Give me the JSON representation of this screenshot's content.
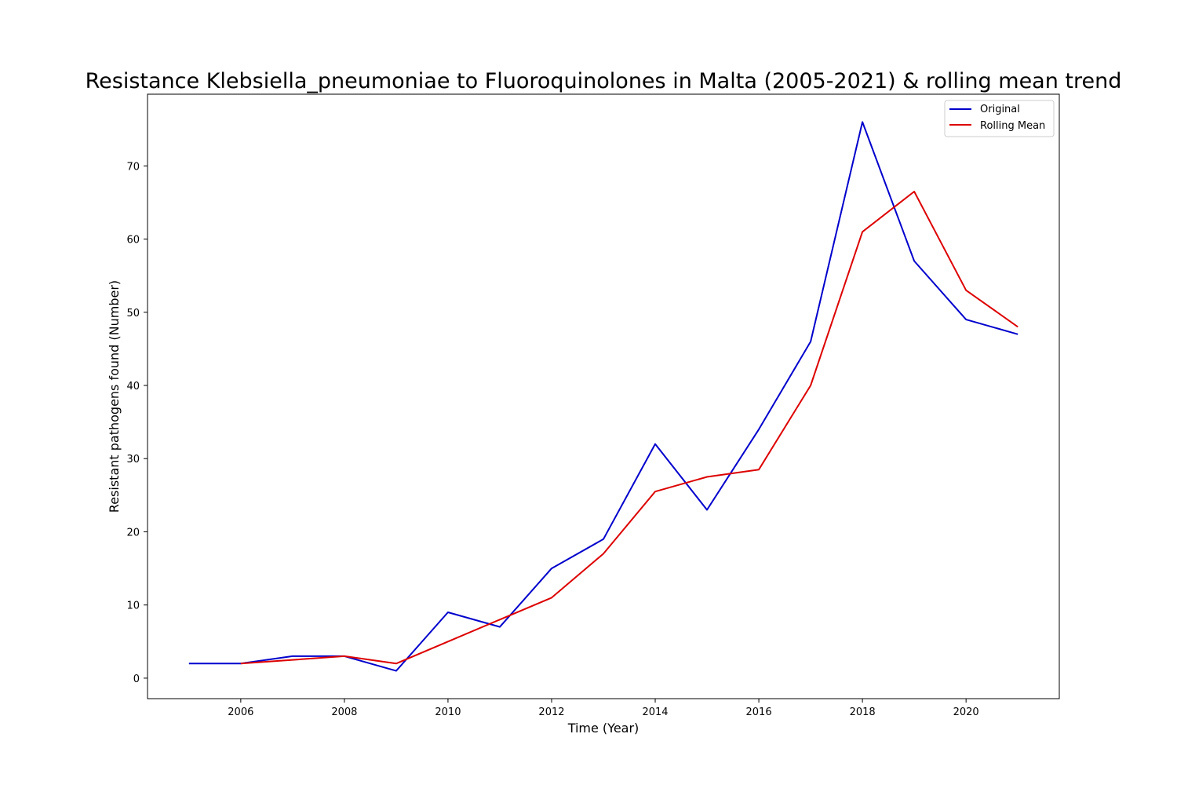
{
  "chart_data": {
    "type": "line",
    "title": "Resistance Klebsiella_pneumoniae to Fluoroquinolones in Malta (2005-2021) & rolling mean trend",
    "xlabel": "Time (Year)",
    "ylabel": "Resistant pathogens found (Number)",
    "x": [
      2005,
      2006,
      2007,
      2008,
      2009,
      2010,
      2011,
      2012,
      2013,
      2014,
      2015,
      2016,
      2017,
      2018,
      2019,
      2020,
      2021
    ],
    "xlim": [
      2004.2,
      2021.8
    ],
    "ylim": [
      -2.8,
      79.8
    ],
    "xticks": [
      2006,
      2008,
      2010,
      2012,
      2014,
      2016,
      2018,
      2020
    ],
    "yticks": [
      0,
      10,
      20,
      30,
      40,
      50,
      60,
      70
    ],
    "grid": false,
    "legend_position": "top-right",
    "series": [
      {
        "name": "Original",
        "color": "#0000cc",
        "values": [
          2,
          2,
          3,
          3,
          1,
          9,
          7,
          15,
          19,
          32,
          23,
          34,
          46,
          76,
          57,
          49,
          47
        ]
      },
      {
        "name": "Rolling Mean",
        "color": "#dd0000",
        "values": [
          null,
          2,
          2.5,
          3,
          2,
          5,
          8,
          11,
          17,
          25.5,
          27.5,
          28.5,
          40,
          61,
          66.5,
          53,
          48
        ]
      }
    ]
  }
}
